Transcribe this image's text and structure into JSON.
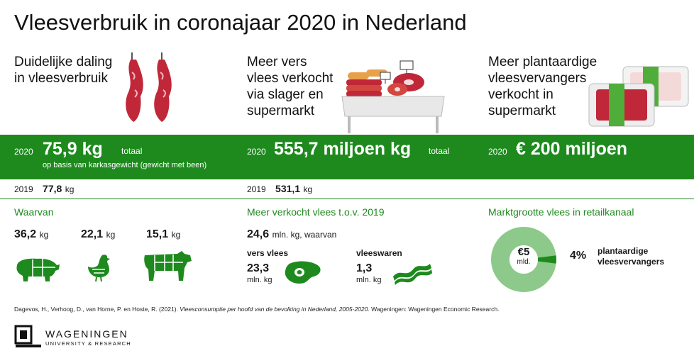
{
  "title": "Vleesverbruik in coronajaar 2020 in Nederland",
  "col1": {
    "heading_l1": "Duidelijke daling",
    "heading_l2": "in vleesverbruik",
    "year": "2020",
    "value": "75,9 kg",
    "value_suffix": "totaal",
    "note": "op basis van karkasgewicht (gewicht met been)",
    "prev_year": "2019",
    "prev_value": "77,8",
    "prev_unit": "kg",
    "section_title": "Waarvan",
    "items": [
      {
        "value": "36,2",
        "unit": "kg",
        "icon": "pig-icon"
      },
      {
        "value": "22,1",
        "unit": "kg",
        "icon": "chicken-icon"
      },
      {
        "value": "15,1",
        "unit": "kg",
        "icon": "cow-icon"
      }
    ]
  },
  "col2": {
    "heading_l1": "Meer vers",
    "heading_l2": "vlees verkocht",
    "heading_l3": "via slager en",
    "heading_l4": "supermarkt",
    "year": "2020",
    "value": "555,7 miljoen kg",
    "value_suffix": "totaal",
    "prev_year": "2019",
    "prev_value": "531,1",
    "prev_unit": "kg",
    "section_title": "Meer verkocht vlees t.o.v. 2019",
    "total_value": "24,6",
    "total_unit": "mln. kg, waarvan",
    "fresh_label": "vers vlees",
    "fresh_value": "23,3",
    "fresh_unit": "mln. kg",
    "cold_label": "vleeswaren",
    "cold_value": "1,3",
    "cold_unit": "mln. kg"
  },
  "col3": {
    "heading_l1": "Meer plantaardige",
    "heading_l2": "vleesvervangers",
    "heading_l3": "verkocht in",
    "heading_l4": "supermarkt",
    "year": "2020",
    "value": "€ 200 miljoen",
    "section_title": "Marktgrootte vlees in retailkanaal",
    "donut_value": "€5",
    "donut_unit": "mld.",
    "share_pct": "4%",
    "share_label_l1": "plantaardige",
    "share_label_l2": "vleesvervangers",
    "share_fraction": 0.04
  },
  "citation_plain": "Dagevos, H., Verhoog, D., van Horne, P. en Hoste, R. (2021). ",
  "citation_italic": "Vleesconsumptie per hoofd van de bevolking in Nederland, 2005-2020.",
  "citation_end": " Wageningen: Wageningen Economic Research.",
  "logo_line1": "WAGENINGEN",
  "logo_line2": "UNIVERSITY & RESEARCH",
  "colors": {
    "accent": "#1e8a1e",
    "meat": "#c0283a"
  }
}
